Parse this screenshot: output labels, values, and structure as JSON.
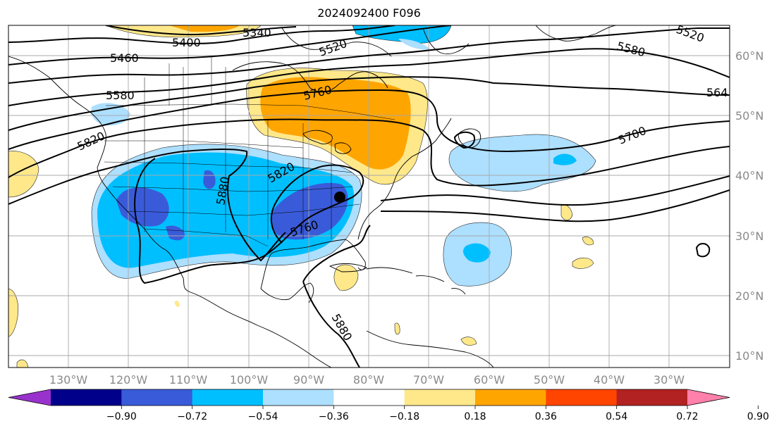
{
  "title": "2024092400 F096",
  "map": {
    "lon_labels": [
      "130°W",
      "120°W",
      "110°W",
      "100°W",
      "90°W",
      "80°W",
      "70°W",
      "60°W",
      "50°W",
      "40°W",
      "30°W"
    ],
    "lat_labels": [
      "10°N",
      "20°N",
      "30°N",
      "40°N",
      "50°N",
      "60°N"
    ],
    "contour_labels": [
      "5340",
      "5400",
      "5460",
      "5520",
      "5520",
      "5580",
      "5580",
      "564",
      "5700",
      "5760",
      "5760",
      "5820",
      "5820",
      "5880",
      "5880"
    ],
    "marker": "storm-center-dot"
  },
  "colorbar": {
    "ticks": [
      "−0.90",
      "−0.72",
      "−0.54",
      "−0.36",
      "−0.18",
      "0.18",
      "0.36",
      "0.54",
      "0.72",
      "0.90"
    ],
    "colors": [
      "#9932CC",
      "#00008B",
      "#3A5BD9",
      "#00BFFF",
      "#ADDFFF",
      "#FFFFFF",
      "#FFE88A",
      "#FFA500",
      "#FF4500",
      "#B22222",
      "#FF80AB"
    ]
  }
}
